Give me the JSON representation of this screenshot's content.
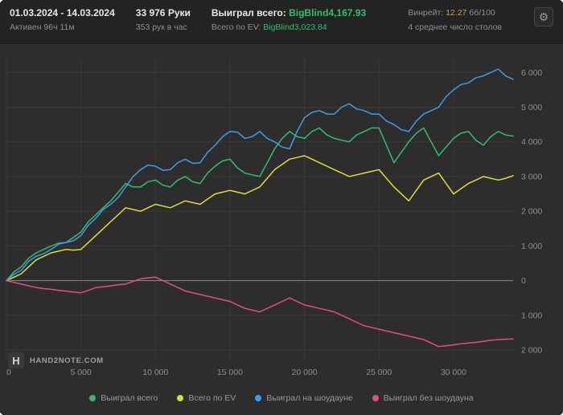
{
  "header": {
    "date_range": "01.03.2024 - 14.03.2024",
    "active_time": "Активен 96ч 11м",
    "hands": "33 976 Руки",
    "hands_per_hour": "353 рук в час",
    "won_total_label": "Выиграл всего:",
    "won_total_value": "BigBlind4,167.93",
    "ev_total_label": "Всего по EV:",
    "ev_total_value": "BigBlind3,023.84",
    "winrate_label": "Винрейт:",
    "winrate_value": "12.27",
    "winrate_units": "бб/100",
    "avg_tables": "4 среднее число столов",
    "gear_icon": "⚙"
  },
  "footer": {
    "logo_letter": "H",
    "logo_text": "HAND2NOTE.COM"
  },
  "colors": {
    "won_total": "#2fbf71",
    "ev_total": "#dede32",
    "showdown": "#3f9de8",
    "non_showdown": "#e64d7e",
    "accent_orange": "#d29a4f",
    "grid": "#3a3a3a",
    "zero_line": "#8a8a8a",
    "axis_text": "#8f8f8f"
  },
  "chart_data": {
    "type": "line",
    "title": "",
    "xlabel": "",
    "ylabel": "",
    "grid": true,
    "legend_position": "bottom",
    "xlim": [
      0,
      34000
    ],
    "ylim": [
      -2300,
      6400
    ],
    "x_step": 500,
    "x_ticks": [
      0,
      5000,
      10000,
      15000,
      20000,
      25000,
      30000
    ],
    "y_ticks": [
      -2000,
      -1000,
      0,
      1000,
      2000,
      3000,
      4000,
      5000,
      6000
    ],
    "series": [
      {
        "name": "Выиграл всего",
        "color": "#2fbf71",
        "values": [
          0,
          250,
          400,
          650,
          800,
          900,
          1000,
          1080,
          1100,
          1250,
          1400,
          1700,
          1900,
          2100,
          2300,
          2550,
          2800,
          2700,
          2700,
          2850,
          2900,
          2750,
          2700,
          2900,
          3000,
          2850,
          2800,
          3100,
          3300,
          3450,
          3500,
          3250,
          3100,
          3050,
          3000,
          3400,
          3800,
          4100,
          4300,
          4150,
          4100,
          4300,
          4400,
          4200,
          4100,
          4050,
          4000,
          4200,
          4300,
          4400,
          4400,
          3900,
          3400,
          3700,
          4000,
          4250,
          4400,
          4000,
          3600,
          3850,
          4100,
          4250,
          4300,
          4050,
          3900,
          4150,
          4300,
          4200,
          4168
        ]
      },
      {
        "name": "Всего по EV",
        "color": "#dede32",
        "values": [
          0,
          100,
          200,
          400,
          600,
          700,
          800,
          850,
          900,
          880,
          900,
          1100,
          1300,
          1500,
          1700,
          1900,
          2100,
          2050,
          2000,
          2100,
          2200,
          2150,
          2100,
          2200,
          2300,
          2250,
          2200,
          2350,
          2500,
          2550,
          2600,
          2550,
          2500,
          2600,
          2700,
          2950,
          3200,
          3350,
          3500,
          3550,
          3600,
          3500,
          3400,
          3300,
          3200,
          3100,
          3000,
          3050,
          3100,
          3150,
          3200,
          2950,
          2700,
          2500,
          2300,
          2600,
          2900,
          3000,
          3100,
          2800,
          2500,
          2650,
          2800,
          2900,
          3000,
          2950,
          2900,
          2950,
          3024
        ]
      },
      {
        "name": "Выиграл на шоудауне",
        "color": "#3f9de8",
        "values": [
          0,
          180,
          300,
          560,
          700,
          780,
          900,
          1050,
          1100,
          1150,
          1300,
          1600,
          1800,
          2050,
          2200,
          2400,
          2700,
          3000,
          3200,
          3330,
          3300,
          3180,
          3200,
          3400,
          3500,
          3380,
          3400,
          3700,
          3900,
          4150,
          4300,
          4280,
          4100,
          4150,
          4300,
          4100,
          4000,
          3850,
          3800,
          4300,
          4700,
          4850,
          4900,
          4800,
          4800,
          5000,
          5100,
          4950,
          4900,
          4800,
          4800,
          4600,
          4500,
          4350,
          4300,
          4600,
          4800,
          4900,
          5000,
          5300,
          5500,
          5650,
          5700,
          5850,
          5900,
          6000,
          6100,
          5900,
          5800
        ]
      },
      {
        "name": "Выиграл без шоудауна",
        "color": "#e64d7e",
        "values": [
          0,
          -50,
          -100,
          -150,
          -200,
          -230,
          -250,
          -280,
          -300,
          -330,
          -350,
          -280,
          -200,
          -180,
          -150,
          -120,
          -100,
          -20,
          50,
          80,
          100,
          0,
          -100,
          -200,
          -300,
          -350,
          -400,
          -450,
          -500,
          -550,
          -600,
          -700,
          -800,
          -850,
          -900,
          -800,
          -700,
          -600,
          -500,
          -600,
          -700,
          -750,
          -800,
          -850,
          -900,
          -1000,
          -1100,
          -1200,
          -1300,
          -1350,
          -1400,
          -1450,
          -1500,
          -1550,
          -1600,
          -1650,
          -1700,
          -1800,
          -1900,
          -1880,
          -1850,
          -1820,
          -1800,
          -1780,
          -1750,
          -1720,
          -1700,
          -1690,
          -1680
        ]
      }
    ]
  }
}
